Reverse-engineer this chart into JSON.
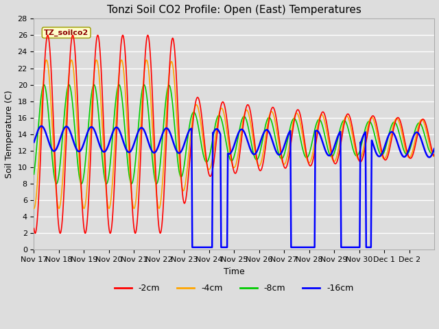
{
  "title": "Tonzi Soil CO2 Profile: Open (East) Temperatures",
  "xlabel": "Time",
  "ylabel": "Soil Temperature (C)",
  "ylim": [
    0,
    28
  ],
  "xtick_labels": [
    "Nov 17",
    "Nov 18",
    "Nov 19",
    "Nov 20",
    "Nov 21",
    "Nov 22",
    "Nov 23",
    "Nov 24",
    "Nov 25",
    "Nov 26",
    "Nov 27",
    "Nov 28",
    "Nov 29",
    "Nov 30",
    "Dec 1",
    "Dec 2"
  ],
  "series": {
    "-2cm": {
      "color": "#ff0000",
      "lw": 1.2
    },
    "-4cm": {
      "color": "#ffa500",
      "lw": 1.2
    },
    "-8cm": {
      "color": "#00cc00",
      "lw": 1.2
    },
    "-16cm": {
      "color": "#0000ff",
      "lw": 1.2
    }
  },
  "legend_label": "TZ_soilco2",
  "background_color": "#dddddd",
  "plot_bg_color": "#dddddd",
  "grid_color": "#ffffff",
  "title_fontsize": 11,
  "axis_fontsize": 9,
  "tick_fontsize": 8,
  "figsize": [
    6.4,
    4.8
  ],
  "dpi": 100
}
